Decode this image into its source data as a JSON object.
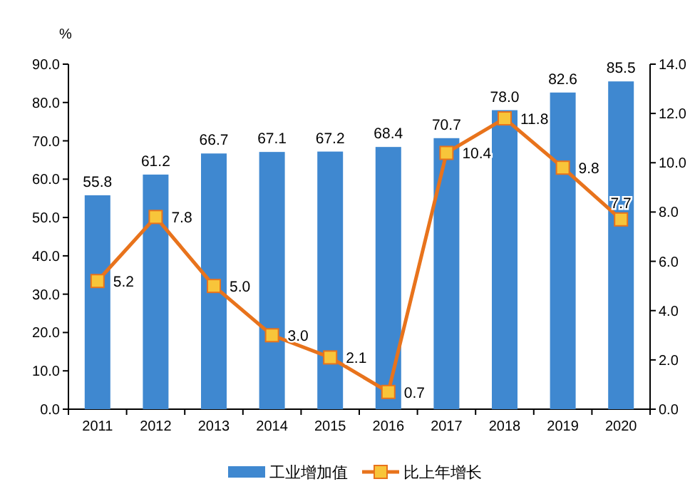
{
  "chart_data": {
    "type": "bar",
    "categories": [
      "2011",
      "2012",
      "2013",
      "2014",
      "2015",
      "2016",
      "2017",
      "2018",
      "2019",
      "2020"
    ],
    "ylabel": "%",
    "series": [
      {
        "name": "工业增加值",
        "color": "#3f88d0",
        "values": [
          55.8,
          61.2,
          66.7,
          67.1,
          67.2,
          68.4,
          70.7,
          78.0,
          82.6,
          85.5
        ],
        "value_labels": [
          "55.8",
          "61.2",
          "66.7",
          "67.1",
          "67.2",
          "68.4",
          "70.7",
          "78.0",
          "82.6",
          "85.5"
        ]
      },
      {
        "name": "比上年增长",
        "type": "line",
        "axis": "y2",
        "color": "#e8731c",
        "values": [
          5.2,
          7.8,
          5.0,
          3.0,
          2.1,
          0.7,
          10.4,
          11.8,
          9.8,
          7.7
        ],
        "value_labels": [
          "5.2",
          "7.8",
          "5.0",
          "3.0",
          "2.1",
          "0.7",
          "10.4",
          "11.8",
          "9.8",
          "7.7"
        ]
      }
    ],
    "ylim": [
      0,
      90
    ],
    "yticks": [
      {
        "value": 0,
        "label": "0.0"
      },
      {
        "value": 10,
        "label": "10.0"
      },
      {
        "value": 20,
        "label": "20.0"
      },
      {
        "value": 30,
        "label": "30.0"
      },
      {
        "value": 40,
        "label": "40.0"
      },
      {
        "value": 50,
        "label": "50.0"
      },
      {
        "value": 60,
        "label": "60.0"
      },
      {
        "value": 70,
        "label": "70.0"
      },
      {
        "value": 80,
        "label": "80.0"
      },
      {
        "value": 90,
        "label": "90.0"
      }
    ],
    "y2lim": [
      0,
      14
    ],
    "y2ticks": [
      {
        "value": 0,
        "label": "0.0"
      },
      {
        "value": 2,
        "label": "2.0"
      },
      {
        "value": 4,
        "label": "4.0"
      },
      {
        "value": 6,
        "label": "6.0"
      },
      {
        "value": 8,
        "label": "8.0"
      },
      {
        "value": 10,
        "label": "10.0"
      },
      {
        "value": 12,
        "label": "12.0"
      },
      {
        "value": 14,
        "label": "14.0"
      }
    ],
    "marker": "square",
    "line_style": "solid",
    "legend": "bottom"
  }
}
